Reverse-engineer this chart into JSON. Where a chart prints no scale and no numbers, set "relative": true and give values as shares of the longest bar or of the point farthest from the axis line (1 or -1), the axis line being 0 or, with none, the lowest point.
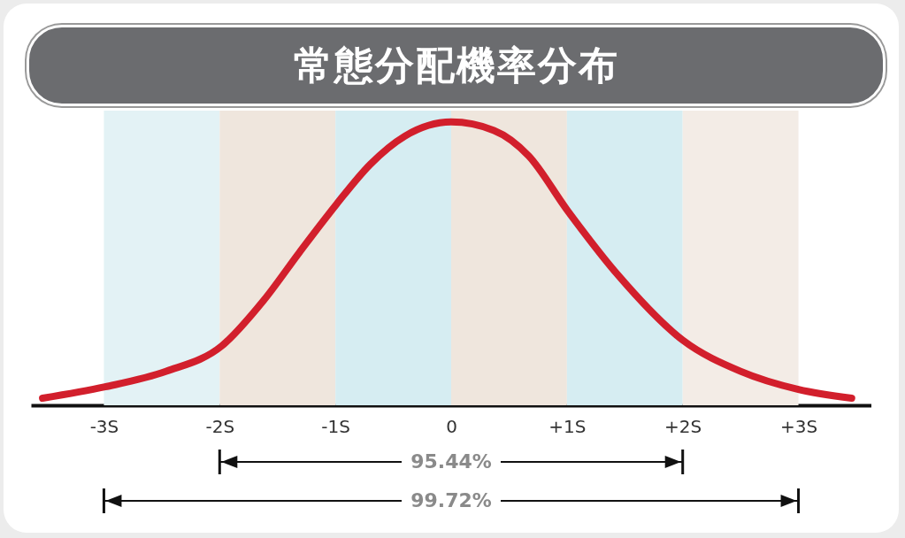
{
  "chart_data": {
    "type": "line",
    "title": "常態分配機率分布",
    "relative": true,
    "x": [
      -3.53,
      -2.99,
      -2.46,
      -1.98,
      -1.62,
      -1.31,
      -0.99,
      -0.7,
      -0.4,
      0,
      0.37,
      0.67,
      1.0,
      1.44,
      2.0,
      2.5,
      3.0,
      3.46
    ],
    "series": [
      {
        "color": "#d21f2c",
        "values": [
          0.025,
          0.065,
          0.12,
          0.21,
          0.37,
          0.54,
          0.71,
          0.85,
          0.95,
          1,
          0.97,
          0.88,
          0.69,
          0.46,
          0.23,
          0.12,
          0.056,
          0.025
        ]
      }
    ],
    "xlim": [
      -3.63,
      3.63
    ],
    "xticks": [
      {
        "value": -3,
        "label": "-3S"
      },
      {
        "value": -2,
        "label": "-2S"
      },
      {
        "value": -1,
        "label": "-1S"
      },
      0,
      {
        "value": 1,
        "label": "+1S"
      },
      {
        "value": 2,
        "label": "+2S"
      },
      {
        "value": 3,
        "label": "+3S"
      }
    ],
    "bands": [
      {
        "axis": "x",
        "from": -3,
        "to": -2,
        "color": "#e3f2f5"
      },
      {
        "axis": "x",
        "from": -2,
        "to": -1,
        "color": "#efe6dd"
      },
      {
        "axis": "x",
        "from": -1,
        "to": 0,
        "color": "#d6edf2"
      },
      {
        "axis": "x",
        "from": 0,
        "to": 1,
        "color": "#efe6dd"
      },
      {
        "axis": "x",
        "from": 1,
        "to": 2,
        "color": "#d6edf2"
      },
      {
        "axis": "x",
        "from": 2,
        "to": 3,
        "color": "#f3ece6"
      }
    ],
    "annotations": [
      "95.44%",
      "99.72%"
    ],
    "grid": false
  }
}
